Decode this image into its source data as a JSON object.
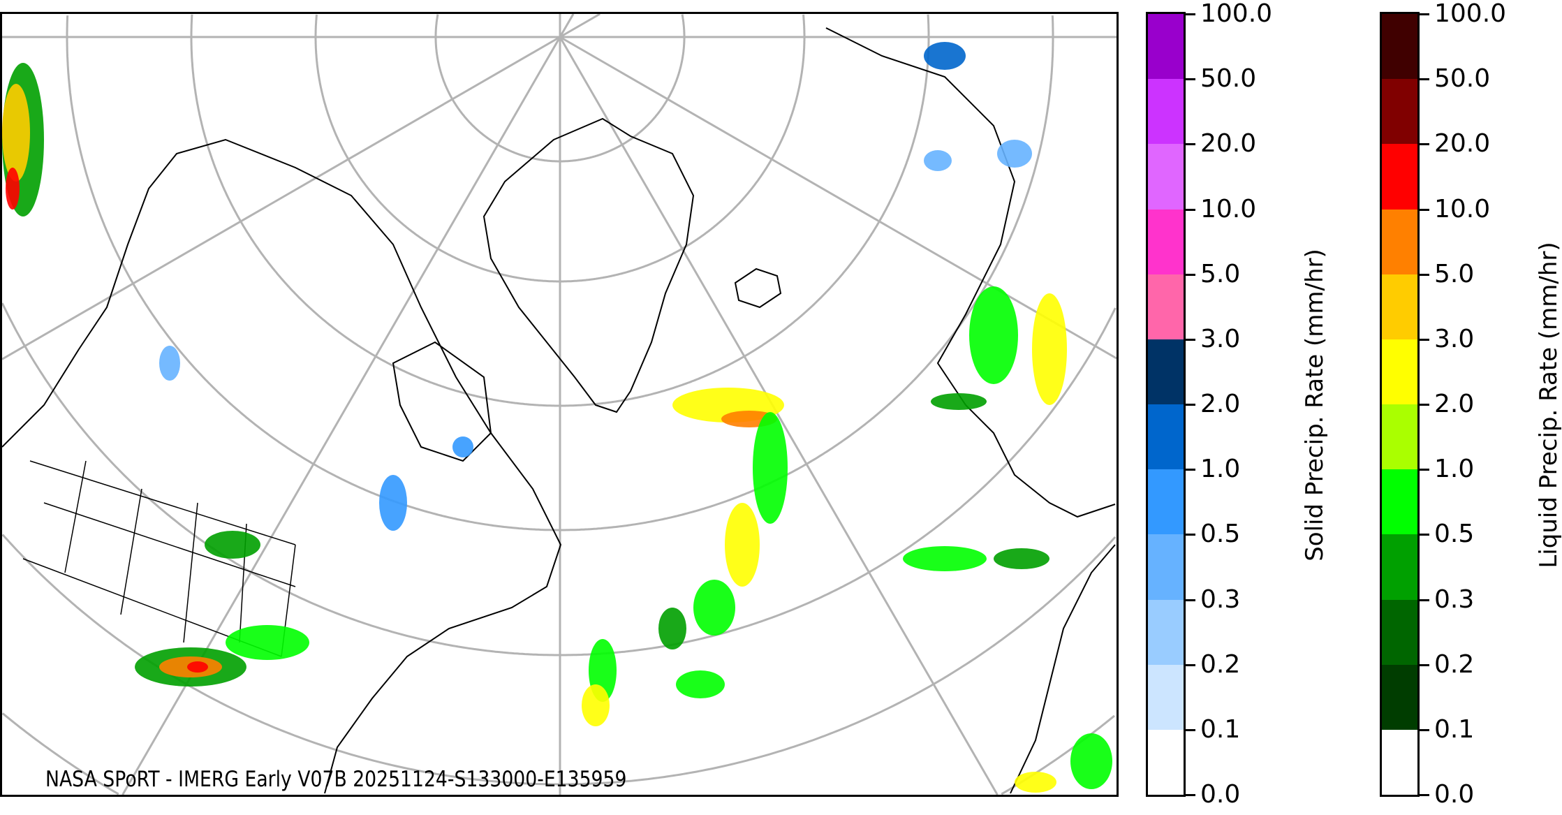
{
  "map": {
    "credit": "NASA SPoRT - IMERG Early V07B 20251124-S133000-E135959",
    "graticule_color": "#b3b3b3",
    "coastline_color": "#000000"
  },
  "colorbars": [
    {
      "label": "Solid Precip. Rate (mm/hr)",
      "ticks": [
        "0.0",
        "0.1",
        "0.2",
        "0.3",
        "0.5",
        "1.0",
        "2.0",
        "3.0",
        "5.0",
        "10.0",
        "20.0",
        "50.0",
        "100.0"
      ],
      "colors": [
        "#ffffff",
        "#cce5ff",
        "#99ccff",
        "#66b2ff",
        "#3399ff",
        "#0066cc",
        "#003366",
        "#ff66aa",
        "#ff33cc",
        "#e066ff",
        "#cc33ff",
        "#9900cc"
      ]
    },
    {
      "label": "Liquid Precip. Rate (mm/hr)",
      "ticks": [
        "0.0",
        "0.1",
        "0.2",
        "0.3",
        "0.5",
        "1.0",
        "2.0",
        "3.0",
        "5.0",
        "10.0",
        "20.0",
        "50.0",
        "100.0"
      ],
      "colors": [
        "#ffffff",
        "#003d00",
        "#006600",
        "#00a000",
        "#00ff00",
        "#aaff00",
        "#ffff00",
        "#ffcc00",
        "#ff8000",
        "#ff0000",
        "#800000",
        "#400000"
      ]
    }
  ]
}
